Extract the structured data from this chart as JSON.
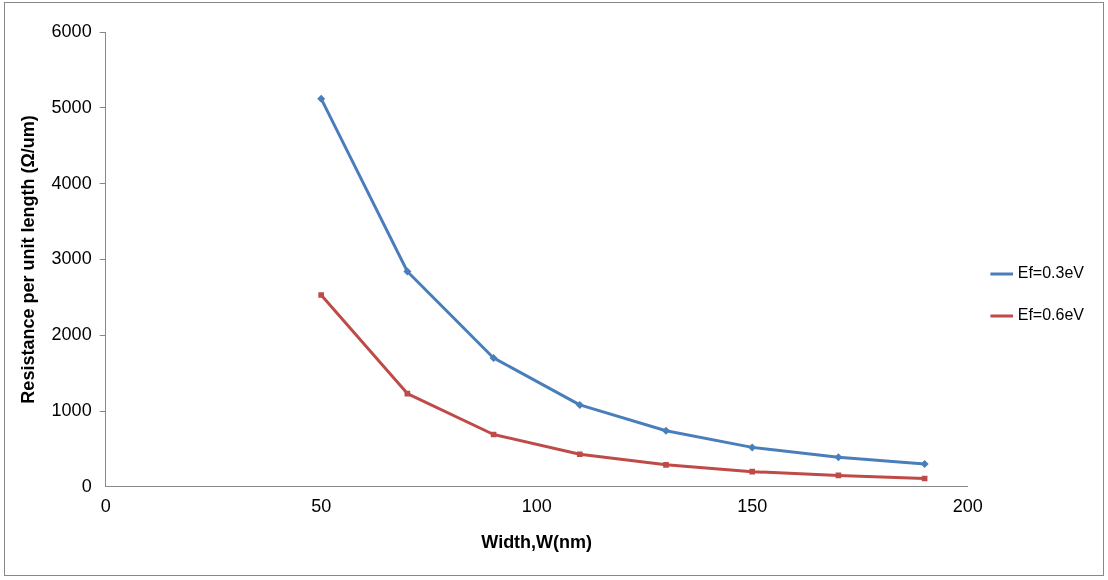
{
  "chart_data": {
    "type": "line",
    "xlabel": "Width,W(nm)",
    "ylabel": "Resistance per unit length (Ω/um)",
    "x": [
      50,
      70,
      90,
      110,
      130,
      150,
      170,
      190
    ],
    "series": [
      {
        "name": "Ef=0.3eV",
        "color": "#4a7ebb",
        "marker": "diamond",
        "values": [
          5120,
          2840,
          1700,
          1080,
          740,
          520,
          390,
          300
        ]
      },
      {
        "name": "Ef=0.6eV",
        "color": "#be4b48",
        "marker": "square",
        "values": [
          2530,
          1230,
          690,
          430,
          290,
          200,
          150,
          110
        ]
      }
    ],
    "xlim": [
      0,
      200
    ],
    "xticks": [
      0,
      50,
      100,
      150,
      200
    ],
    "ylim": [
      0,
      6000
    ],
    "yticks": [
      0,
      1000,
      2000,
      3000,
      4000,
      5000,
      6000
    ],
    "grid": false,
    "legend": "right",
    "line_style": "solid"
  }
}
